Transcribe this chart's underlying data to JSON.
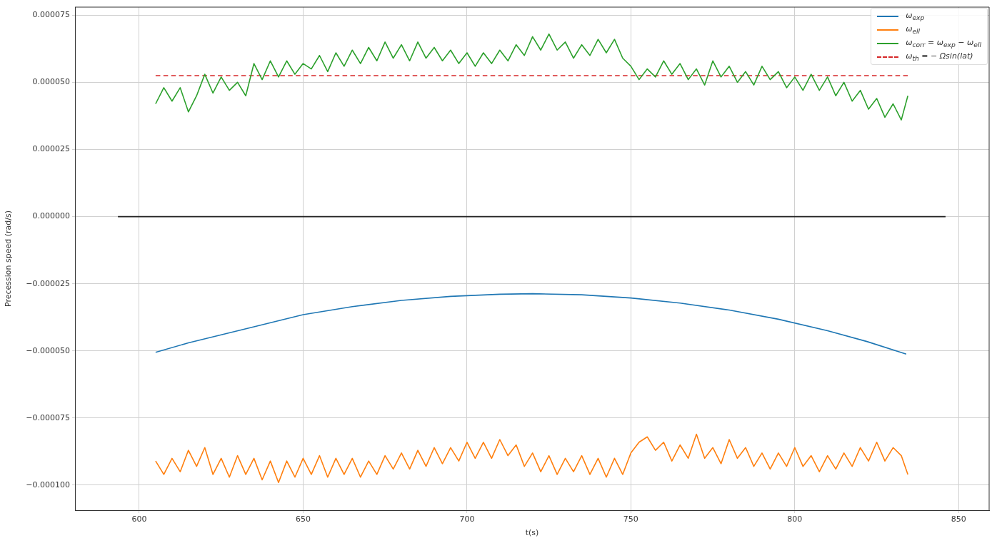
{
  "chart_data": {
    "type": "line",
    "xlabel": "t(s)",
    "ylabel": "Precession speed (rad/s)",
    "x": [
      605,
      607.5,
      610,
      612.5,
      615,
      617.5,
      620,
      622.5,
      625,
      627.5,
      630,
      632.5,
      635,
      637.5,
      640,
      642.5,
      645,
      647.5,
      650,
      652.5,
      655,
      657.5,
      660,
      662.5,
      665,
      667.5,
      670,
      672.5,
      675,
      677.5,
      680,
      682.5,
      685,
      687.5,
      690,
      692.5,
      695,
      697.5,
      700,
      702.5,
      705,
      707.5,
      710,
      712.5,
      715,
      717.5,
      720,
      722.5,
      725,
      727.5,
      730,
      732.5,
      735,
      737.5,
      740,
      742.5,
      745,
      747.5,
      750,
      752.5,
      755,
      757.5,
      760,
      762.5,
      765,
      767.5,
      770,
      772.5,
      775,
      777.5,
      780,
      782.5,
      785,
      787.5,
      790,
      792.5,
      795,
      797.5,
      800,
      802.5,
      805,
      807.5,
      810,
      812.5,
      815,
      817.5,
      820,
      822.5,
      825,
      827.5,
      830,
      832.5,
      834.5
    ],
    "series": [
      {
        "name": "ω$_{exp}$",
        "color": "#1f77b4",
        "x": [
          605,
          615,
          625,
          635,
          650,
          665,
          680,
          695,
          710,
          720,
          735,
          750,
          765,
          780,
          795,
          810,
          822,
          834
        ],
        "values": [
          -5.05e-05,
          -4.7e-05,
          -4.4e-05,
          -4.1e-05,
          -3.65e-05,
          -3.35e-05,
          -3.12e-05,
          -2.97e-05,
          -2.89e-05,
          -2.87e-05,
          -2.91e-05,
          -3.03e-05,
          -3.22e-05,
          -3.48e-05,
          -3.82e-05,
          -4.25e-05,
          -4.65e-05,
          -5.12e-05
        ]
      },
      {
        "name": "ω$_{ell}$",
        "color": "#ff7f0e",
        "values": [
          -9.1e-05,
          -9.6e-05,
          -9e-05,
          -9.5e-05,
          -8.7e-05,
          -9.3e-05,
          -8.6e-05,
          -9.6e-05,
          -9e-05,
          -9.7e-05,
          -8.9e-05,
          -9.6e-05,
          -9e-05,
          -9.8e-05,
          -9.1e-05,
          -9.9e-05,
          -9.1e-05,
          -9.7e-05,
          -9e-05,
          -9.6e-05,
          -8.9e-05,
          -9.7e-05,
          -9e-05,
          -9.6e-05,
          -9e-05,
          -9.7e-05,
          -9.1e-05,
          -9.6e-05,
          -8.9e-05,
          -9.4e-05,
          -8.8e-05,
          -9.4e-05,
          -8.7e-05,
          -9.3e-05,
          -8.6e-05,
          -9.2e-05,
          -8.6e-05,
          -9.1e-05,
          -8.4e-05,
          -9e-05,
          -8.4e-05,
          -9e-05,
          -8.3e-05,
          -8.9e-05,
          -8.5e-05,
          -9.3e-05,
          -8.8e-05,
          -9.5e-05,
          -8.9e-05,
          -9.6e-05,
          -9e-05,
          -9.5e-05,
          -8.9e-05,
          -9.6e-05,
          -9e-05,
          -9.7e-05,
          -9e-05,
          -9.6e-05,
          -8.8e-05,
          -8.4e-05,
          -8.2e-05,
          -8.7e-05,
          -8.4e-05,
          -9.1e-05,
          -8.5e-05,
          -9e-05,
          -8.1e-05,
          -9e-05,
          -8.6e-05,
          -9.2e-05,
          -8.3e-05,
          -9e-05,
          -8.6e-05,
          -9.3e-05,
          -8.8e-05,
          -9.4e-05,
          -8.8e-05,
          -9.3e-05,
          -8.6e-05,
          -9.3e-05,
          -8.9e-05,
          -9.5e-05,
          -8.9e-05,
          -9.4e-05,
          -8.8e-05,
          -9.3e-05,
          -8.6e-05,
          -9.1e-05,
          -8.4e-05,
          -9.1e-05,
          -8.6e-05,
          -8.9e-05,
          -9.6e-05
        ]
      },
      {
        "name": "ω$_{corr}$ = ω$_{exp}$ − ω$_{ell}$",
        "color": "#2ca02c",
        "values": [
          4.2e-05,
          4.8e-05,
          4.3e-05,
          4.8e-05,
          3.9e-05,
          4.5e-05,
          5.3e-05,
          4.6e-05,
          5.2e-05,
          4.7e-05,
          5e-05,
          4.5e-05,
          5.7e-05,
          5.1e-05,
          5.8e-05,
          5.2e-05,
          5.8e-05,
          5.3e-05,
          5.7e-05,
          5.5e-05,
          6e-05,
          5.4e-05,
          6.1e-05,
          5.6e-05,
          6.2e-05,
          5.7e-05,
          6.3e-05,
          5.8e-05,
          6.5e-05,
          5.9e-05,
          6.4e-05,
          5.8e-05,
          6.5e-05,
          5.9e-05,
          6.3e-05,
          5.8e-05,
          6.2e-05,
          5.7e-05,
          6.1e-05,
          5.6e-05,
          6.1e-05,
          5.7e-05,
          6.2e-05,
          5.8e-05,
          6.4e-05,
          6e-05,
          6.7e-05,
          6.2e-05,
          6.8e-05,
          6.2e-05,
          6.5e-05,
          5.9e-05,
          6.4e-05,
          6e-05,
          6.6e-05,
          6.1e-05,
          6.6e-05,
          5.9e-05,
          5.6e-05,
          5.1e-05,
          5.5e-05,
          5.2e-05,
          5.8e-05,
          5.3e-05,
          5.7e-05,
          5.1e-05,
          5.5e-05,
          4.9e-05,
          5.8e-05,
          5.2e-05,
          5.6e-05,
          5e-05,
          5.4e-05,
          4.9e-05,
          5.6e-05,
          5.1e-05,
          5.4e-05,
          4.8e-05,
          5.2e-05,
          4.7e-05,
          5.3e-05,
          4.7e-05,
          5.2e-05,
          4.5e-05,
          5e-05,
          4.3e-05,
          4.7e-05,
          4e-05,
          4.4e-05,
          3.7e-05,
          4.2e-05,
          3.6e-05,
          4.5e-05
        ]
      },
      {
        "name": "ω$_{th}$ = − Ωsin(lat)",
        "color": "#d62728",
        "line_style": "dashed",
        "x": [
          605,
          834.5
        ],
        "values": [
          5.25e-05,
          5.25e-05
        ]
      },
      {
        "color": "#222222",
        "x": [
          593.5,
          846
        ],
        "values": [
          0,
          0
        ]
      }
    ],
    "xlim": [
      580.4,
      859.3
    ],
    "xticks": [
      600,
      650,
      700,
      750,
      800,
      850
    ],
    "ylim": [
      -0.0001093,
      7.8e-05
    ],
    "yticks": [
      {
        "value": 7.5e-05,
        "label": "0.000075"
      },
      {
        "value": 5e-05,
        "label": "0.000050"
      },
      {
        "value": 2.5e-05,
        "label": "0.000025"
      },
      {
        "value": 0,
        "label": "0.000000"
      },
      {
        "value": -2.5e-05,
        "label": "−0.000025"
      },
      {
        "value": -5e-05,
        "label": "−0.000050"
      },
      {
        "value": -7.5e-05,
        "label": "−0.000075"
      },
      {
        "value": -0.0001,
        "label": "−0.000100"
      }
    ],
    "grid": true,
    "legend": "top right",
    "marker": "none",
    "line_style": "solid"
  }
}
